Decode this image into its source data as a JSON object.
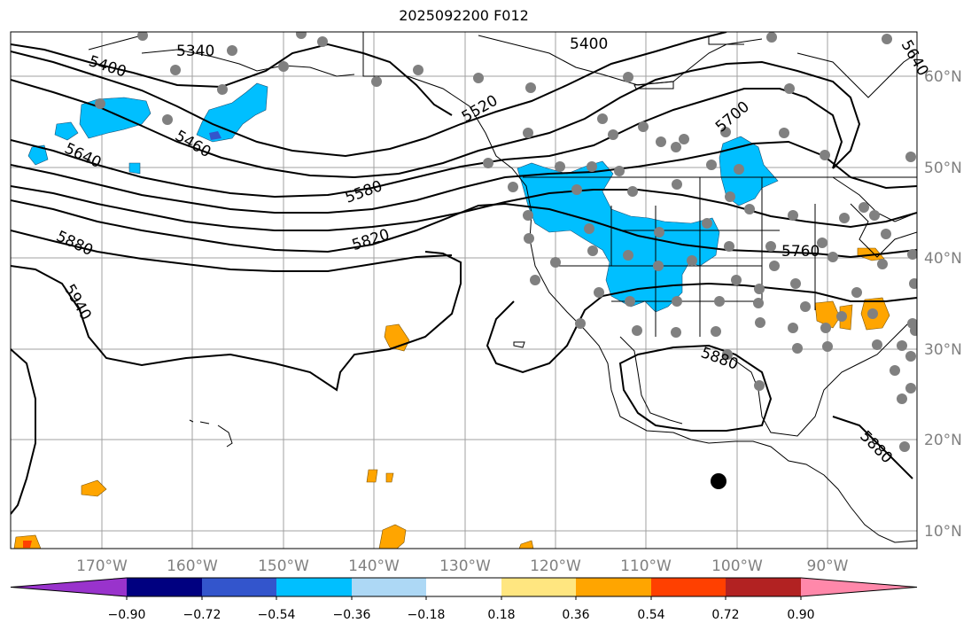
{
  "title": "2025092200 F012",
  "longitude_labels": [
    "170°W",
    "160°W",
    "150°W",
    "140°W",
    "130°W",
    "120°W",
    "110°W",
    "100°W",
    "90°W"
  ],
  "latitude_labels": [
    "60°N",
    "50°N",
    "40°N",
    "30°N",
    "20°N",
    "10°N"
  ],
  "contour_labels": [
    "5340",
    "5400",
    "5400",
    "5460",
    "5520",
    "5580",
    "5640",
    "5700",
    "5760",
    "5820",
    "5880",
    "5880",
    "5880",
    "5940",
    "5640"
  ],
  "colorbar": {
    "ticks": [
      "−0.90",
      "−0.72",
      "−0.54",
      "−0.36",
      "−0.18",
      "0.18",
      "0.36",
      "0.54",
      "0.72",
      "0.90"
    ],
    "colors": [
      "#9933cc",
      "#000080",
      "#3355cc",
      "#00bfff",
      "#add8f5",
      "#ffffff",
      "#ffe680",
      "#ffa500",
      "#ff4000",
      "#b22222",
      "#ff88aa"
    ]
  },
  "fill_colors": {
    "negative": "#00bfff",
    "negative_dark": "#3355cc",
    "positive": "#ffa500",
    "positive_dark": "#ff4000"
  },
  "station_color": "#808080",
  "marker_color": "#000000"
}
